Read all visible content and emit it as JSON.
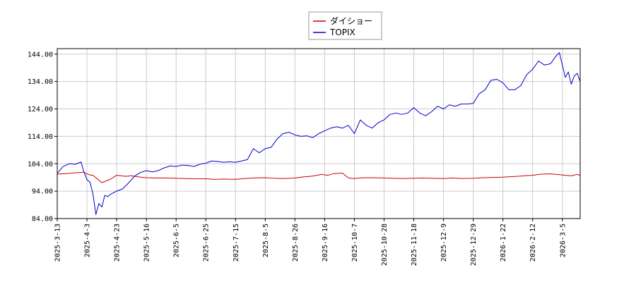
{
  "chart_data": {
    "type": "line",
    "title": "",
    "xlabel": "",
    "ylabel": "",
    "grid": true,
    "legend_position": "top-center",
    "ylim": [
      84,
      146
    ],
    "y_ticks": [
      "84.00",
      "94.00",
      "104.00",
      "114.00",
      "124.00",
      "134.00",
      "144.00"
    ],
    "x_ticks": [
      "2025-3-13",
      "2025-4-3",
      "2025-4-23",
      "2025-5-16",
      "2025-6-5",
      "2025-6-25",
      "2025-7-15",
      "2025-8-5",
      "2025-8-26",
      "2025-9-16",
      "2025-10-7",
      "2025-10-28",
      "2025-11-18",
      "2025-12-9",
      "2025-12-29",
      "2026-1-22",
      "2026-2-12",
      "2026-3-5"
    ],
    "x_end_index": 17.6,
    "series": [
      {
        "name": "ダイショー",
        "color": "#cc0000",
        "x": [
          0,
          0.3,
          0.6,
          0.9,
          1.0,
          1.1,
          1.2,
          1.5,
          1.8,
          2.0,
          2.3,
          2.5,
          2.8,
          3.0,
          3.3,
          3.6,
          4.0,
          4.3,
          4.6,
          5.0,
          5.3,
          5.6,
          6.0,
          6.3,
          6.6,
          7.0,
          7.3,
          7.6,
          8.0,
          8.3,
          8.6,
          8.9,
          9.1,
          9.3,
          9.6,
          9.8,
          10.0,
          10.3,
          10.6,
          11.0,
          11.3,
          11.6,
          12.0,
          12.3,
          12.6,
          13.0,
          13.3,
          13.6,
          14.0,
          14.3,
          14.6,
          15.0,
          15.3,
          15.6,
          16.0,
          16.3,
          16.6,
          16.9,
          17.1,
          17.3,
          17.5,
          17.6
        ],
        "values": [
          100.2,
          100.4,
          100.7,
          100.9,
          100.3,
          99.9,
          99.8,
          97.1,
          98.4,
          99.8,
          99.4,
          99.6,
          99.1,
          98.9,
          98.8,
          98.8,
          98.7,
          98.6,
          98.5,
          98.5,
          98.3,
          98.4,
          98.3,
          98.6,
          98.8,
          98.9,
          98.7,
          98.6,
          98.8,
          99.2,
          99.5,
          100.1,
          99.8,
          100.4,
          100.6,
          98.8,
          98.6,
          98.9,
          98.9,
          98.8,
          98.7,
          98.6,
          98.7,
          98.8,
          98.7,
          98.6,
          98.8,
          98.6,
          98.7,
          98.9,
          99.0,
          99.1,
          99.3,
          99.5,
          99.8,
          100.2,
          100.3,
          100.0,
          99.8,
          99.6,
          100.1,
          99.8
        ]
      },
      {
        "name": "TOPIX",
        "color": "#0000cc",
        "x": [
          0,
          0.2,
          0.4,
          0.6,
          0.8,
          0.9,
          1.0,
          1.1,
          1.2,
          1.3,
          1.4,
          1.5,
          1.6,
          1.7,
          1.8,
          2.0,
          2.2,
          2.4,
          2.6,
          2.8,
          3.0,
          3.2,
          3.4,
          3.6,
          3.8,
          4.0,
          4.2,
          4.4,
          4.6,
          4.8,
          5.0,
          5.2,
          5.4,
          5.6,
          5.8,
          6.0,
          6.2,
          6.4,
          6.6,
          6.8,
          7.0,
          7.2,
          7.4,
          7.6,
          7.8,
          8.0,
          8.2,
          8.4,
          8.6,
          8.8,
          9.0,
          9.2,
          9.4,
          9.6,
          9.8,
          10.0,
          10.2,
          10.4,
          10.6,
          10.8,
          11.0,
          11.2,
          11.4,
          11.6,
          11.8,
          12.0,
          12.2,
          12.4,
          12.6,
          12.8,
          13.0,
          13.2,
          13.4,
          13.6,
          13.8,
          14.0,
          14.2,
          14.4,
          14.6,
          14.8,
          15.0,
          15.2,
          15.4,
          15.6,
          15.8,
          16.0,
          16.2,
          16.4,
          16.6,
          16.8,
          16.9,
          17.0,
          17.1,
          17.2,
          17.3,
          17.4,
          17.5,
          17.6
        ],
        "values": [
          100.5,
          103.0,
          104.0,
          103.8,
          104.6,
          101.0,
          98.2,
          97.3,
          93.0,
          85.5,
          89.5,
          88.2,
          92.5,
          92.0,
          92.9,
          94.0,
          94.8,
          97.0,
          99.4,
          100.8,
          101.5,
          101.0,
          101.5,
          102.5,
          103.2,
          103.0,
          103.5,
          103.4,
          103.0,
          103.8,
          104.2,
          105.0,
          104.8,
          104.5,
          104.7,
          104.5,
          105.0,
          105.5,
          109.5,
          108.0,
          109.5,
          110.0,
          113.0,
          115.0,
          115.5,
          114.5,
          114.0,
          114.2,
          113.5,
          115.0,
          116.0,
          117.0,
          117.5,
          117.0,
          118.0,
          115.0,
          120.0,
          118.0,
          117.0,
          119.0,
          120.0,
          122.0,
          122.5,
          122.0,
          122.5,
          124.5,
          122.5,
          121.5,
          123.0,
          125.0,
          124.0,
          125.5,
          125.0,
          125.8,
          125.8,
          126.0,
          129.5,
          131.0,
          134.5,
          134.8,
          133.5,
          131.0,
          131.0,
          132.5,
          136.5,
          138.5,
          141.5,
          140.0,
          140.5,
          143.5,
          144.5,
          140.0,
          135.5,
          137.5,
          133.0,
          136.0,
          137.0,
          134.0
        ]
      }
    ]
  }
}
